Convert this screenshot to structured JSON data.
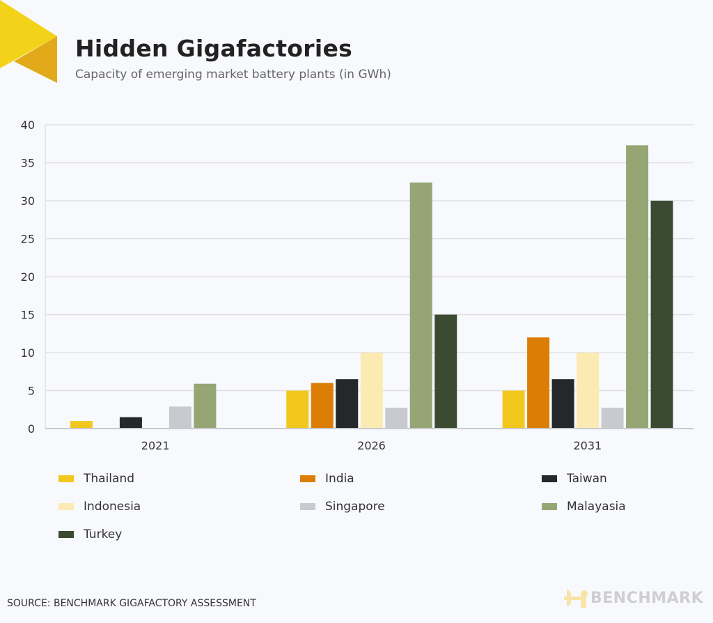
{
  "header": {
    "title": "Hidden Gigafactories",
    "subtitle": "Capacity of emerging market battery plants (in GWh)"
  },
  "footer": {
    "source": "SOURCE: BENCHMARK GIGAFACTORY ASSESSMENT",
    "logo_text": "BENCHMARK"
  },
  "chart_data": {
    "type": "bar",
    "title": "Hidden Gigafactories",
    "subtitle": "Capacity of emerging market battery plants (in GWh)",
    "xlabel": "",
    "ylabel": "",
    "categories": [
      "2021",
      "2026",
      "2031"
    ],
    "ylim": [
      0,
      40
    ],
    "yticks": [
      0,
      5,
      10,
      15,
      20,
      25,
      30,
      35,
      40
    ],
    "grid": true,
    "legend_placement": "bottom",
    "series": [
      {
        "name": "Thailand",
        "color": "#f2c81e",
        "values": [
          1,
          5,
          5
        ]
      },
      {
        "name": "India",
        "color": "#dc7e06",
        "values": [
          0,
          6,
          12
        ]
      },
      {
        "name": "Taiwan",
        "color": "#25272b",
        "values": [
          1.5,
          6.5,
          6.5
        ]
      },
      {
        "name": "Indonesia",
        "color": "#fbebb2",
        "values": [
          0,
          10,
          10
        ]
      },
      {
        "name": "Singapore",
        "color": "#c9cad0",
        "values": [
          2.9,
          2.75,
          2.75
        ]
      },
      {
        "name": "Malayasia",
        "color": "#95a674",
        "values": [
          5.9,
          32.4,
          37.3
        ]
      },
      {
        "name": "Turkey",
        "color": "#3b4b31",
        "values": [
          0,
          15,
          30
        ]
      }
    ]
  }
}
